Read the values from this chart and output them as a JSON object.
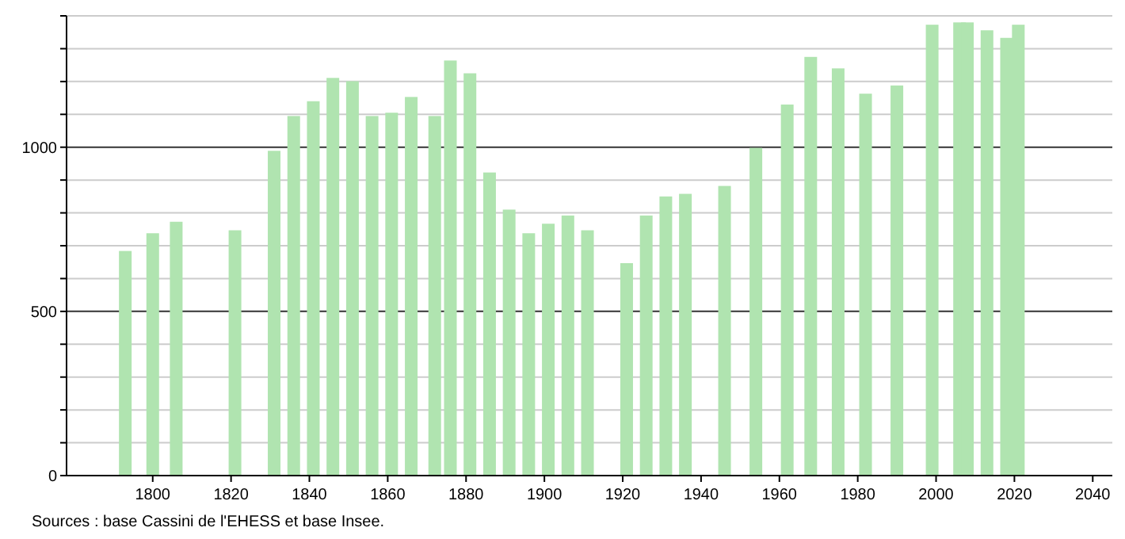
{
  "chart_data": {
    "type": "bar",
    "x": [
      1793,
      1800,
      1806,
      1821,
      1831,
      1836,
      1841,
      1846,
      1851,
      1856,
      1861,
      1866,
      1872,
      1876,
      1881,
      1886,
      1891,
      1896,
      1901,
      1906,
      1911,
      1921,
      1926,
      1931,
      1936,
      1946,
      1954,
      1962,
      1968,
      1975,
      1982,
      1990,
      1999,
      2006,
      2008,
      2013,
      2018,
      2021
    ],
    "values": [
      684,
      738,
      773,
      747,
      989,
      1095,
      1140,
      1211,
      1201,
      1095,
      1105,
      1153,
      1095,
      1264,
      1225,
      923,
      810,
      738,
      767,
      792,
      747,
      647,
      792,
      850,
      858,
      882,
      998,
      1130,
      1275,
      1240,
      1163,
      1188,
      1373,
      1380,
      1380,
      1356,
      1333,
      1373
    ],
    "color": "#b0e4b0",
    "xlim": [
      1778,
      2045
    ],
    "xticks": [
      1800,
      1820,
      1840,
      1860,
      1880,
      1900,
      1920,
      1940,
      1960,
      1980,
      2000,
      2020,
      2040
    ],
    "ylim": [
      0,
      1400
    ],
    "yticks": [
      0,
      {
        "value": 100,
        "label": null
      },
      {
        "value": 200,
        "label": null
      },
      {
        "value": 300,
        "label": null
      },
      {
        "value": 400,
        "label": null
      },
      500,
      {
        "value": 600,
        "label": null
      },
      {
        "value": 700,
        "label": null
      },
      {
        "value": 800,
        "label": null
      },
      {
        "value": 900,
        "label": null
      },
      1000,
      {
        "value": 1100,
        "label": null
      },
      {
        "value": 1200,
        "label": null
      },
      {
        "value": 1300,
        "label": null
      },
      {
        "value": 1400,
        "label": null
      }
    ],
    "grid": true,
    "annotations": [
      "Sources : base Cassini de l'EHESS et base Insee."
    ]
  }
}
